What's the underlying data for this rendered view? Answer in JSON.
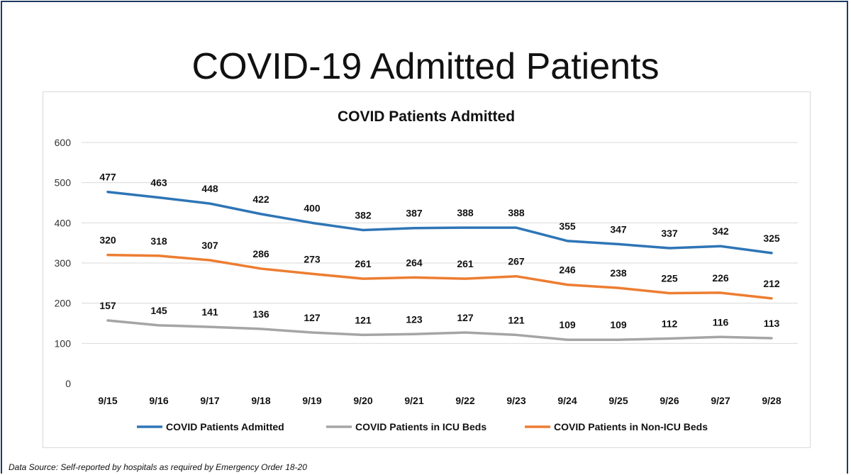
{
  "slide": {
    "title": "COVID-19 Admitted Patients",
    "footnote": "Data Source: Self-reported by hospitals as required by Emergency Order 18-20"
  },
  "chart_data": {
    "type": "line",
    "title": "COVID Patients Admitted",
    "xlabel": "",
    "ylabel": "",
    "ylim": [
      0,
      600
    ],
    "yticks": [
      0,
      100,
      200,
      300,
      400,
      500,
      600
    ],
    "grid": true,
    "legend_position": "bottom",
    "categories": [
      "9/15",
      "9/16",
      "9/17",
      "9/18",
      "9/19",
      "9/20",
      "9/21",
      "9/22",
      "9/23",
      "9/24",
      "9/25",
      "9/26",
      "9/27",
      "9/28"
    ],
    "series": [
      {
        "name": "COVID Patients Admitted",
        "color": "#2e75b6",
        "values": [
          477,
          463,
          448,
          422,
          400,
          382,
          387,
          388,
          388,
          355,
          347,
          337,
          342,
          325
        ]
      },
      {
        "name": "COVID Patients in ICU Beds",
        "color": "#a5a5a5",
        "values": [
          157,
          145,
          141,
          136,
          127,
          121,
          123,
          127,
          121,
          109,
          109,
          112,
          116,
          113
        ]
      },
      {
        "name": "COVID Patients in Non-ICU Beds",
        "color": "#ed7d31",
        "values": [
          320,
          318,
          307,
          286,
          273,
          261,
          264,
          261,
          267,
          246,
          238,
          225,
          226,
          212
        ]
      }
    ]
  }
}
